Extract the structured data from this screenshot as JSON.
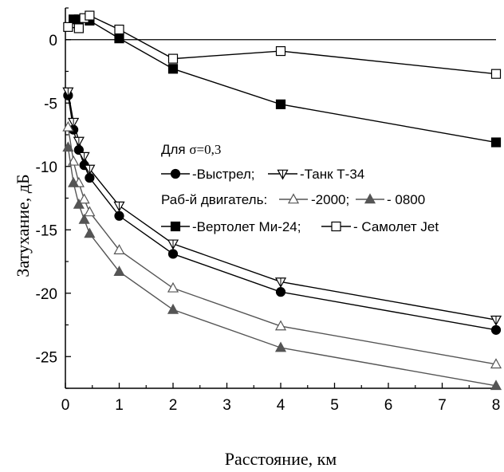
{
  "chart_data": {
    "type": "line",
    "xlabel": "Расстояние, км",
    "ylabel": "Затухание, дБ",
    "xlim": [
      0,
      8
    ],
    "ylim": [
      -27.5,
      2.5
    ],
    "x_ticks": [
      0,
      1,
      2,
      3,
      4,
      5,
      6,
      7,
      8
    ],
    "y_ticks": [
      0,
      -5,
      -10,
      -15,
      -20,
      -25
    ],
    "x_tick_labels": [
      "0",
      "1",
      "2",
      "3",
      "4",
      "5",
      "6",
      "7",
      "8"
    ],
    "y_tick_labels": [
      "0",
      "-5",
      "-10",
      "-15",
      "-20",
      "-25"
    ],
    "reference_line_y": 0,
    "grid": false,
    "legend_position": "center-left",
    "series": [
      {
        "name": "-Выстрел;",
        "marker": "filled-circle",
        "color": "#000000",
        "points": [
          [
            0.05,
            -4.4
          ],
          [
            0.15,
            -7.1
          ],
          [
            0.25,
            -8.7
          ],
          [
            0.35,
            -9.9
          ],
          [
            0.45,
            -10.9
          ],
          [
            1.0,
            -13.9
          ],
          [
            2.0,
            -16.9
          ],
          [
            4.0,
            -19.9
          ],
          [
            8.0,
            -22.9
          ]
        ]
      },
      {
        "name": "-Танк Т-34",
        "marker": "open-triangle-down",
        "color": "#000000",
        "points": [
          [
            0.05,
            -4.1
          ],
          [
            0.15,
            -6.5
          ],
          [
            0.25,
            -8.0
          ],
          [
            0.35,
            -9.2
          ],
          [
            0.45,
            -10.2
          ],
          [
            1.0,
            -13.1
          ],
          [
            2.0,
            -16.1
          ],
          [
            4.0,
            -19.1
          ],
          [
            8.0,
            -22.1
          ]
        ]
      },
      {
        "name": "-2000;",
        "marker": "open-triangle-up",
        "color": "#555555",
        "points": [
          [
            0.05,
            -6.9
          ],
          [
            0.15,
            -9.6
          ],
          [
            0.25,
            -11.3
          ],
          [
            0.35,
            -12.6
          ],
          [
            0.45,
            -13.6
          ],
          [
            1.0,
            -16.6
          ],
          [
            2.0,
            -19.6
          ],
          [
            4.0,
            -22.6
          ],
          [
            8.0,
            -25.6
          ]
        ]
      },
      {
        "name": "- 0800",
        "marker": "filled-triangle-up",
        "color": "#555555",
        "points": [
          [
            0.05,
            -8.5
          ],
          [
            0.15,
            -11.3
          ],
          [
            0.25,
            -13.0
          ],
          [
            0.35,
            -14.2
          ],
          [
            0.45,
            -15.3
          ],
          [
            1.0,
            -18.3
          ],
          [
            2.0,
            -21.3
          ],
          [
            4.0,
            -24.3
          ],
          [
            8.0,
            -27.3
          ]
        ]
      },
      {
        "name": "-Вертолет Ми-24;",
        "marker": "filled-square",
        "color": "#000000",
        "points": [
          [
            0.15,
            1.6
          ],
          [
            0.25,
            1.6
          ],
          [
            0.45,
            1.5
          ],
          [
            1.0,
            0.1
          ],
          [
            2.0,
            -2.3
          ],
          [
            4.0,
            -5.1
          ],
          [
            8.0,
            -8.1
          ]
        ]
      },
      {
        "name": "- Самолет Jet",
        "marker": "open-square",
        "color": "#000000",
        "points": [
          [
            0.05,
            1.0
          ],
          [
            0.25,
            0.9
          ],
          [
            0.35,
            1.7
          ],
          [
            0.45,
            1.9
          ],
          [
            1.0,
            0.8
          ],
          [
            2.0,
            -1.5
          ],
          [
            4.0,
            -0.9
          ],
          [
            8.0,
            -2.7
          ]
        ]
      }
    ],
    "legend": {
      "line1_prefix": "Для ",
      "line1_sigma": "σ=0,3",
      "line3_label": "Раб-й двигатель:"
    }
  }
}
